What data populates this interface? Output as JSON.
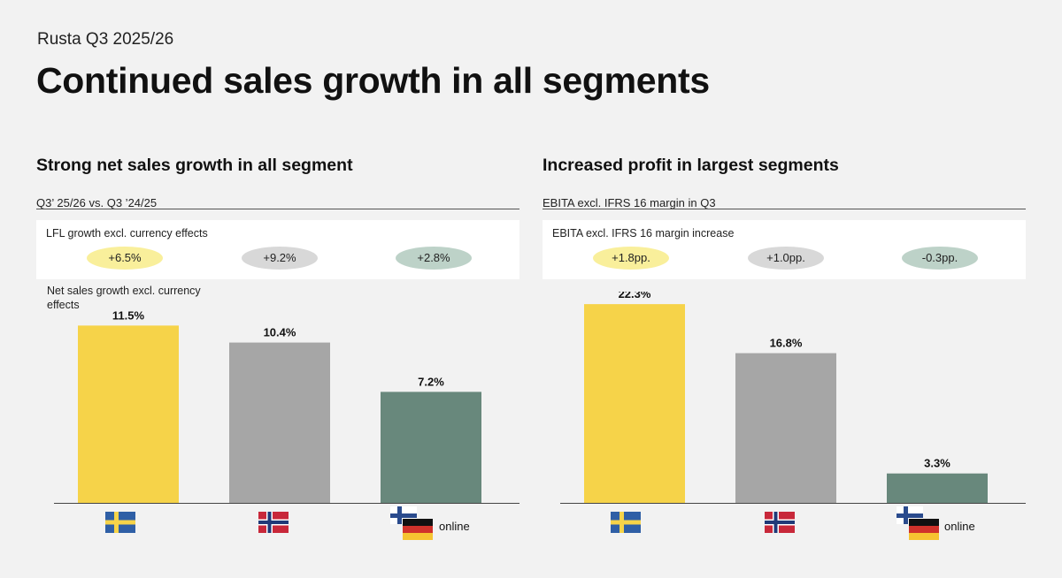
{
  "header": {
    "subtitle": "Rusta Q3 2025/26",
    "title": "Continued sales growth in all segments"
  },
  "panels": [
    {
      "heading": "Strong net sales growth in all segment",
      "caption": "Q3’ 25/26 vs. Q3 ’24/25",
      "kpi_label": "LFL growth excl. currency effects",
      "kpis": [
        "+6.5%",
        "+9.2%",
        "+2.8%"
      ],
      "axis_note": "Net sales growth excl. currency effects",
      "online_label": "online"
    },
    {
      "heading": "Increased profit in largest segments",
      "caption": "EBITA excl. IFRS 16 margin in Q3",
      "kpi_label": "EBITA excl. IFRS 16 margin increase",
      "kpis": [
        "+1.8pp.",
        "+1.0pp.",
        "-0.3pp."
      ],
      "axis_note": "",
      "online_label": "online"
    }
  ],
  "icons": {
    "segment_1": "flag-sweden-icon",
    "segment_2": "flag-norway-icon",
    "segment_3": "flag-finland-germany-icon"
  },
  "colors": {
    "sweden": "#f6d349",
    "norway": "#a6a6a6",
    "other": "#68887c"
  },
  "chart_data": [
    {
      "type": "bar",
      "title": "Net sales growth excl. currency effects",
      "categories": [
        "Sweden",
        "Norway",
        "Other (Finland, Germany, online)"
      ],
      "values": [
        11.5,
        10.4,
        7.2
      ],
      "labels": [
        "11.5%",
        "10.4%",
        "7.2%"
      ],
      "unit": "%",
      "ylim": [
        0,
        13.7
      ]
    },
    {
      "type": "bar",
      "title": "EBITA excl. IFRS 16 margin in Q3",
      "categories": [
        "Sweden",
        "Norway",
        "Other (Finland, Germany, online)"
      ],
      "values": [
        22.3,
        16.8,
        3.3
      ],
      "labels": [
        "22.3%",
        "16.8%",
        "3.3%"
      ],
      "unit": "%",
      "ylim": [
        0,
        23.7
      ]
    }
  ]
}
